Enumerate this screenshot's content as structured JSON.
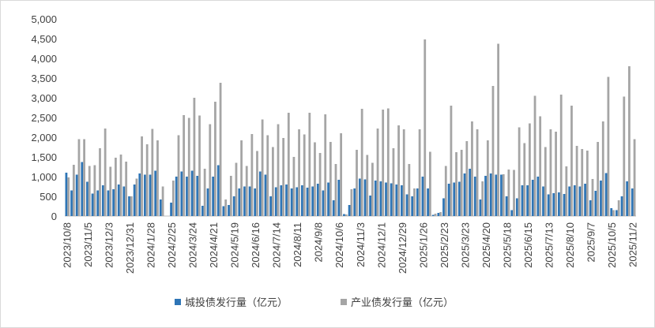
{
  "chart_data": {
    "type": "bar",
    "categories": [
      "2023/10/8",
      null,
      null,
      null,
      "2023/11/5",
      null,
      null,
      null,
      "2023/12/3",
      null,
      null,
      null,
      "2023/12/31",
      null,
      null,
      null,
      "2024/1/28",
      null,
      null,
      null,
      "2024/2/25",
      null,
      null,
      null,
      "2024/3/24",
      null,
      null,
      null,
      "2024/4/21",
      null,
      null,
      null,
      "2024/5/19",
      null,
      null,
      null,
      "2024/6/16",
      null,
      null,
      null,
      "2024/7/14",
      null,
      null,
      null,
      "2024/8/11",
      null,
      null,
      null,
      "2024/9/8",
      null,
      null,
      null,
      "2024/10/6",
      null,
      null,
      null,
      "2024/11/3",
      null,
      null,
      null,
      "2024/12/1",
      null,
      null,
      null,
      "2024/12/29",
      null,
      null,
      null,
      "2025/1/26",
      null,
      null,
      null,
      "2025/2/23",
      null,
      null,
      null,
      "2025/3/23",
      null,
      null,
      null,
      "2025/4/20",
      null,
      null,
      null,
      "2025/5/18",
      null,
      null,
      null,
      "2025/6/15",
      null,
      null,
      null,
      "2025/7/13",
      null,
      null,
      null,
      "2025/8/10",
      null,
      null,
      null,
      "2025/9/7",
      null,
      null,
      null,
      "2025/10/5",
      null,
      null,
      null,
      "2025/11/2"
    ],
    "series": [
      {
        "name": "城投债发行量（亿元）",
        "color": "#2e75b6",
        "values": [
          1100,
          650,
          1050,
          1370,
          870,
          570,
          650,
          780,
          650,
          680,
          800,
          750,
          500,
          800,
          1080,
          1050,
          1050,
          1150,
          420,
          0,
          340,
          1000,
          1130,
          1000,
          1150,
          1020,
          260,
          700,
          1000,
          1290,
          250,
          280,
          500,
          700,
          750,
          750,
          700,
          1130,
          1050,
          500,
          730,
          780,
          800,
          700,
          730,
          780,
          720,
          750,
          820,
          650,
          850,
          400,
          920,
          50,
          280,
          700,
          950,
          930,
          520,
          900,
          880,
          850,
          830,
          800,
          780,
          550,
          500,
          700,
          1000,
          700,
          30,
          80,
          450,
          820,
          850,
          870,
          1080,
          1200,
          1000,
          420,
          1020,
          1080,
          1050,
          1050,
          500,
          150,
          450,
          780,
          780,
          920,
          1000,
          750,
          550,
          580,
          600,
          560,
          750,
          780,
          750,
          820,
          400,
          640,
          900,
          1090,
          200,
          150,
          500,
          880,
          700
        ]
      },
      {
        "name": "产业债发行量（亿元）",
        "color": "#a5a5a5",
        "values": [
          980,
          1300,
          1950,
          1950,
          1270,
          1290,
          1720,
          2220,
          1250,
          1480,
          1560,
          1380,
          500,
          950,
          2020,
          1820,
          2210,
          1920,
          750,
          0,
          900,
          2050,
          2560,
          2490,
          3000,
          2550,
          1200,
          2330,
          2900,
          3380,
          420,
          1020,
          1350,
          1920,
          1270,
          2080,
          1650,
          2450,
          2050,
          1750,
          2330,
          1980,
          2620,
          1500,
          2200,
          2070,
          2620,
          1870,
          1600,
          2580,
          1880,
          1320,
          2100,
          40,
          680,
          1680,
          2720,
          1550,
          1350,
          2220,
          2700,
          2730,
          1720,
          2300,
          2200,
          1320,
          700,
          2200,
          4480,
          1630,
          60,
          100,
          1270,
          2800,
          1620,
          1680,
          1900,
          2400,
          2200,
          880,
          1920,
          3300,
          4370,
          1060,
          1180,
          1170,
          2250,
          1850,
          2350,
          3050,
          2530,
          1750,
          2200,
          2140,
          3080,
          1260,
          2800,
          1780,
          1700,
          1660,
          940,
          1880,
          2400,
          3530,
          150,
          400,
          3030,
          3800,
          1950
        ]
      }
    ],
    "ylim": [
      0,
      5000
    ],
    "yticks": [
      0,
      500,
      {
        "value": 1000,
        "label": "1,000"
      },
      {
        "value": 1500,
        "label": "1,500"
      },
      {
        "value": 2000,
        "label": "2,000"
      },
      {
        "value": 2500,
        "label": "2,500"
      },
      {
        "value": 3000,
        "label": "3,000"
      },
      {
        "value": 3500,
        "label": "3,500"
      },
      {
        "value": 4000,
        "label": "4,000"
      },
      {
        "value": 4500,
        "label": "4,500"
      },
      {
        "value": 5000,
        "label": "5,000"
      }
    ],
    "legend": "bottom"
  }
}
